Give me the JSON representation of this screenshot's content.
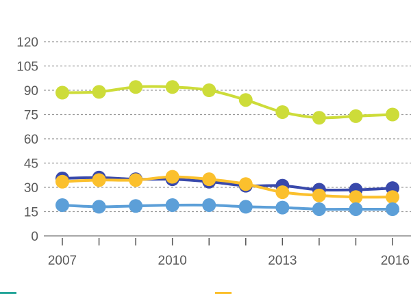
{
  "chart_data": {
    "type": "line",
    "title": "",
    "xlabel": "",
    "ylabel": "",
    "x": [
      2007,
      2008,
      2009,
      2010,
      2011,
      2012,
      2013,
      2014,
      2015,
      2016
    ],
    "x_tick_labels": [
      "2007",
      "2010",
      "2013",
      "2016"
    ],
    "x_tick_values": [
      2007,
      2010,
      2013,
      2016
    ],
    "y_ticks": [
      0,
      15,
      30,
      45,
      60,
      75,
      90,
      105,
      120
    ],
    "y_tick_labels": [
      "0",
      "15",
      "30",
      "45",
      "60",
      "75",
      "90",
      "105",
      "120"
    ],
    "ylim": [
      0,
      120
    ],
    "xlim": [
      2007,
      2016
    ],
    "grid": true,
    "legend": "bottom",
    "series": [
      {
        "color": "#cddc39",
        "values": [
          88.5,
          89,
          92,
          92,
          90,
          84,
          76.5,
          73,
          74,
          75
        ]
      },
      {
        "color": "#3949ab",
        "values": [
          35.5,
          36,
          35,
          35,
          33.5,
          31,
          31,
          28.5,
          28.5,
          29.5
        ]
      },
      {
        "color": "#fbc02d",
        "values": [
          33.5,
          34.5,
          34.5,
          36.5,
          35,
          32,
          27,
          25,
          24,
          24
        ]
      },
      {
        "color": "#5c9fd8",
        "values": [
          19,
          18,
          18.5,
          19,
          19,
          18,
          17.5,
          16.5,
          16.5,
          16.5
        ]
      }
    ],
    "legend_swatches": [
      {
        "color": "#26a69a"
      },
      {
        "color": "#fbc02d"
      }
    ]
  }
}
